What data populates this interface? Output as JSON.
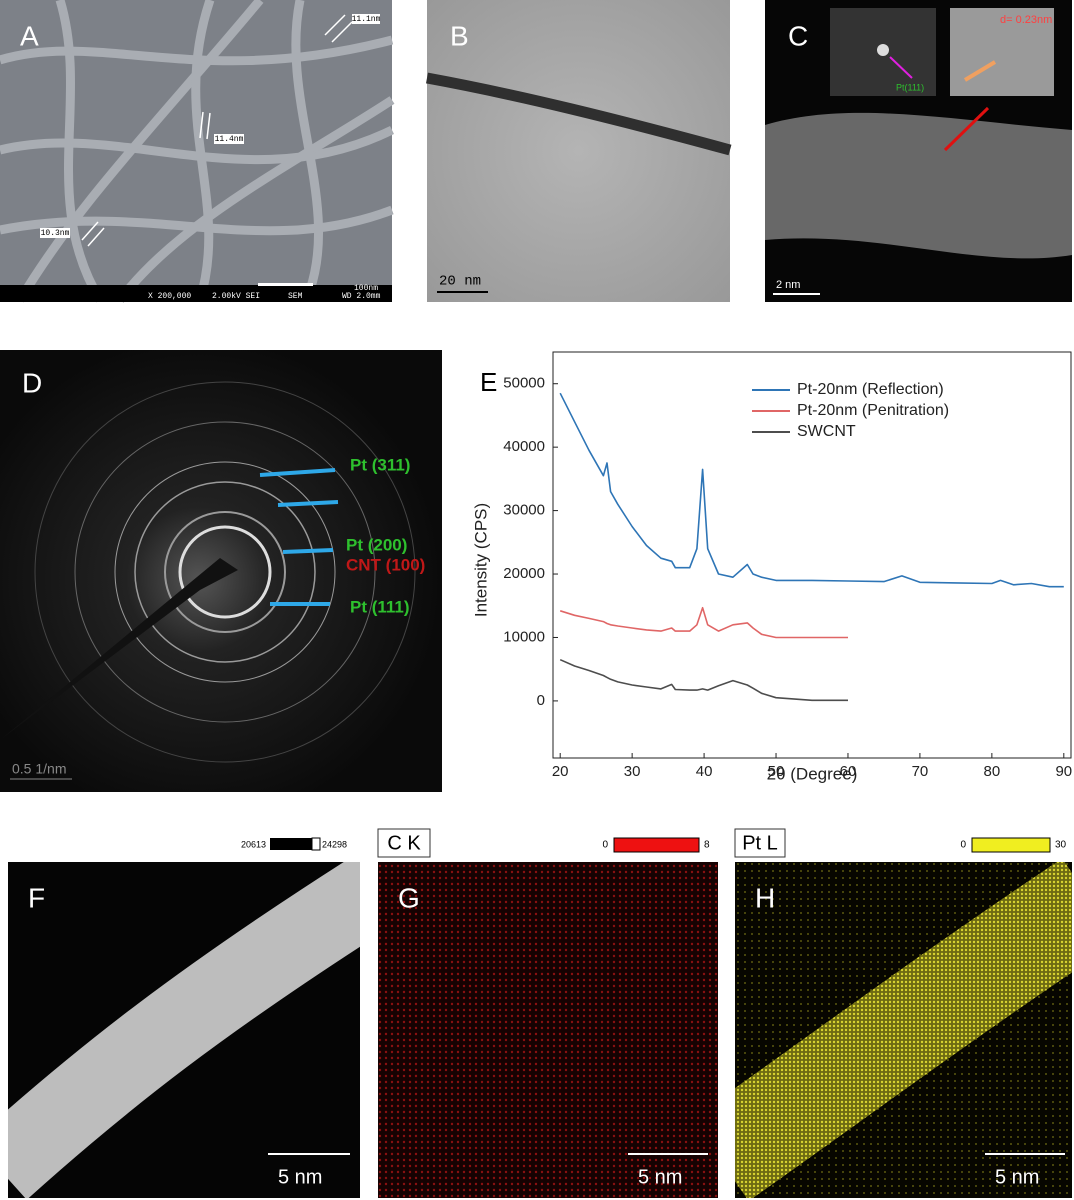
{
  "panel_a": {
    "label": "A",
    "widths": [
      "11.1nm",
      "11.4nm",
      "10.3nm"
    ],
    "footer": [
      "X 200,000",
      "2.00kV SEI",
      "SEM",
      "WD 2.0mm"
    ],
    "scale": "100nm"
  },
  "panel_b": {
    "label": "B",
    "scale": "20 nm"
  },
  "panel_c": {
    "label": "C",
    "scale": "2 nm",
    "fft_label": "Pt(111)",
    "spacing": "d= 0.23nm"
  },
  "panel_d": {
    "label": "D",
    "scale": "0.5 1/nm",
    "rings": [
      "Pt (311)",
      "Pt (200)",
      "CNT (100)",
      "Pt (111)"
    ]
  },
  "chart_data": {
    "type": "line",
    "panel_label": "E",
    "x_label": "2θ (Degree)",
    "y_label": "Intensity  (CPS)",
    "x": [
      20,
      22,
      24,
      26,
      26.5,
      27,
      28,
      30,
      32,
      34,
      35.5,
      36,
      38,
      39,
      39.8,
      40.5,
      42,
      44,
      46,
      46.8,
      48,
      50,
      55,
      60,
      65,
      67.5,
      70,
      75,
      80,
      81.2,
      83,
      85.5,
      88,
      90
    ],
    "series": [
      {
        "name": "Pt-20nm (Reflection)",
        "color": "#2e75b6",
        "values": [
          48500,
          44000,
          39500,
          35500,
          37500,
          33000,
          31000,
          27500,
          24500,
          22500,
          22000,
          21000,
          21000,
          24000,
          36500,
          24000,
          20000,
          19500,
          21500,
          20000,
          19500,
          19000,
          19000,
          18900,
          18800,
          19700,
          18700,
          18600,
          18500,
          19000,
          18300,
          18500,
          18000,
          18000
        ]
      },
      {
        "name": "Pt-20nm (Penitration)",
        "color": "#e06666",
        "values": [
          14200,
          13500,
          13000,
          12500,
          12200,
          12000,
          11800,
          11500,
          11200,
          11000,
          11500,
          11000,
          11000,
          12000,
          14700,
          12000,
          11000,
          12000,
          12300,
          11500,
          10500,
          10000,
          10000,
          10000,
          null,
          null,
          null,
          null,
          null,
          null,
          null,
          null,
          null,
          null
        ]
      },
      {
        "name": "SWCNT",
        "color": "#4d4d4d",
        "values": [
          6500,
          5500,
          4800,
          4000,
          3700,
          3400,
          3000,
          2500,
          2200,
          1900,
          2600,
          1800,
          1700,
          1700,
          1900,
          1700,
          2400,
          3200,
          2500,
          2000,
          1200,
          500,
          100,
          100,
          null,
          null,
          null,
          null,
          null,
          null,
          null,
          null,
          null,
          null
        ]
      }
    ],
    "xlim": [
      19,
      91
    ],
    "xticks": [
      20,
      30,
      40,
      50,
      60,
      70,
      80,
      90
    ],
    "ylim": [
      -9000,
      55000
    ],
    "yticks": [
      0,
      10000,
      20000,
      30000,
      40000,
      50000
    ],
    "grid": false,
    "legend": "upper right"
  },
  "panel_f": {
    "label": "F",
    "scale": "5 nm",
    "range": [
      20613,
      24298
    ]
  },
  "panel_g": {
    "label": "G",
    "map": "C K",
    "scale": "5 nm",
    "range": [
      0,
      8
    ]
  },
  "panel_h": {
    "label": "H",
    "map": "Pt L",
    "scale": "5 nm",
    "range": [
      0,
      30
    ]
  }
}
